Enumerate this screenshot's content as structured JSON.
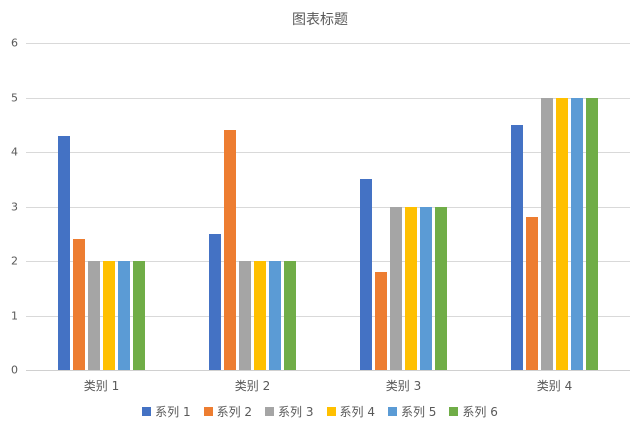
{
  "chart_data": {
    "type": "bar",
    "title": "图表标题",
    "categories": [
      "类别 1",
      "类别 2",
      "类别 3",
      "类别 4"
    ],
    "series": [
      {
        "name": "系列 1",
        "color": "#4472C4",
        "values": [
          4.3,
          2.5,
          3.5,
          4.5
        ]
      },
      {
        "name": "系列 2",
        "color": "#ED7D31",
        "values": [
          2.4,
          4.4,
          1.8,
          2.8
        ]
      },
      {
        "name": "系列 3",
        "color": "#A5A5A5",
        "values": [
          2,
          2,
          3,
          5
        ]
      },
      {
        "name": "系列 4",
        "color": "#FFC000",
        "values": [
          2,
          2,
          3,
          5
        ]
      },
      {
        "name": "系列 5",
        "color": "#5B9BD5",
        "values": [
          2,
          2,
          3,
          5
        ]
      },
      {
        "name": "系列 6",
        "color": "#70AD47",
        "values": [
          2,
          2,
          3,
          5
        ]
      }
    ],
    "xlabel": "",
    "ylabel": "",
    "ylim": [
      0,
      6
    ],
    "yticks": [
      0,
      1,
      2,
      3,
      4,
      5,
      6
    ],
    "grid": true,
    "legend_position": "bottom"
  }
}
